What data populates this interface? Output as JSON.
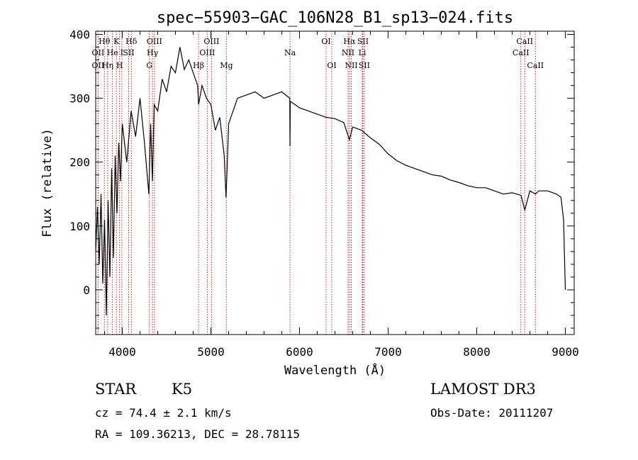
{
  "chart_data": {
    "type": "line",
    "title": "spec−55903−GAC_106N28_B1_sp13−024.fits",
    "xlabel": "Wavelength (Å)",
    "ylabel": "Flux (relative)",
    "xlim": [
      3700,
      9100
    ],
    "ylim": [
      -70,
      405
    ],
    "xticks": [
      4000,
      5000,
      6000,
      7000,
      8000,
      9000
    ],
    "yticks": [
      0,
      100,
      200,
      300,
      400
    ],
    "series": [
      {
        "name": "spectrum",
        "x": [
          3700,
          3720,
          3740,
          3760,
          3780,
          3800,
          3820,
          3840,
          3860,
          3880,
          3900,
          3920,
          3940,
          3960,
          3980,
          4000,
          4050,
          4100,
          4150,
          4200,
          4250,
          4300,
          4320,
          4340,
          4360,
          4400,
          4450,
          4500,
          4550,
          4600,
          4650,
          4700,
          4750,
          4800,
          4850,
          4861,
          4900,
          4950,
          5000,
          5050,
          5100,
          5150,
          5170,
          5183,
          5200,
          5250,
          5300,
          5400,
          5500,
          5600,
          5700,
          5800,
          5890,
          5893,
          5896,
          5950,
          6000,
          6100,
          6200,
          6300,
          6400,
          6500,
          6563,
          6600,
          6700,
          6800,
          6900,
          7000,
          7100,
          7200,
          7300,
          7400,
          7500,
          7600,
          7700,
          7800,
          7900,
          8000,
          8100,
          8200,
          8300,
          8400,
          8500,
          8542,
          8600,
          8662,
          8700,
          8800,
          8900,
          8950,
          8980,
          9000
        ],
        "y": [
          60,
          130,
          40,
          150,
          10,
          110,
          -40,
          140,
          20,
          190,
          50,
          210,
          120,
          230,
          170,
          260,
          200,
          280,
          240,
          300,
          230,
          150,
          260,
          170,
          290,
          280,
          330,
          310,
          350,
          340,
          380,
          345,
          360,
          340,
          320,
          290,
          320,
          300,
          290,
          250,
          270,
          210,
          145,
          190,
          260,
          280,
          300,
          305,
          310,
          300,
          305,
          310,
          300,
          225,
          295,
          290,
          285,
          280,
          275,
          270,
          268,
          262,
          235,
          255,
          250,
          238,
          228,
          213,
          202,
          195,
          190,
          185,
          180,
          178,
          172,
          168,
          163,
          160,
          160,
          155,
          150,
          152,
          148,
          125,
          155,
          150,
          155,
          155,
          150,
          145,
          110,
          0
        ]
      }
    ],
    "lines": [
      {
        "name": "Hθ",
        "x": 3798,
        "row": 1
      },
      {
        "name": "OII",
        "x": 3727,
        "row": 2
      },
      {
        "name": "OII",
        "x": 3727,
        "row": 3
      },
      {
        "name": "K",
        "x": 3934,
        "row": 1
      },
      {
        "name": "He",
        "x": 3889,
        "row": 2
      },
      {
        "name": "Hη",
        "x": 3835,
        "row": 3
      },
      {
        "name": "Hδ",
        "x": 4102,
        "row": 1
      },
      {
        "name": "SII",
        "x": 4072,
        "row": 2
      },
      {
        "name": "H",
        "x": 3969,
        "row": 3
      },
      {
        "name": "I",
        "x": 3995,
        "row": 2
      },
      {
        "name": "OIII",
        "x": 4363,
        "row": 1
      },
      {
        "name": "Hγ",
        "x": 4341,
        "row": 2
      },
      {
        "name": "G",
        "x": 4305,
        "row": 3
      },
      {
        "name": "OIII",
        "x": 5007,
        "row": 1
      },
      {
        "name": "OIII",
        "x": 4959,
        "row": 2
      },
      {
        "name": "Hβ",
        "x": 4861,
        "row": 3
      },
      {
        "name": "Mg",
        "x": 5175,
        "row": 3
      },
      {
        "name": "Na",
        "x": 5893,
        "row": 2
      },
      {
        "name": "OI",
        "x": 6300,
        "row": 1
      },
      {
        "name": "OI",
        "x": 6364,
        "row": 3
      },
      {
        "name": "Hα",
        "x": 6563,
        "row": 1
      },
      {
        "name": "SII",
        "x": 6716,
        "row": 1
      },
      {
        "name": "NII",
        "x": 6548,
        "row": 2
      },
      {
        "name": "Li",
        "x": 6708,
        "row": 2
      },
      {
        "name": "NII",
        "x": 6584,
        "row": 3
      },
      {
        "name": "SII",
        "x": 6731,
        "row": 3
      },
      {
        "name": "CaII",
        "x": 8542,
        "row": 1
      },
      {
        "name": "CaII",
        "x": 8498,
        "row": 2
      },
      {
        "name": "CaII",
        "x": 8662,
        "row": 3
      }
    ]
  },
  "info": {
    "object_class": "STAR",
    "subclass": "K5",
    "survey": "LAMOST DR3",
    "redshift": "cz = 74.4 ± 2.1 km/s",
    "obs_date": "Obs-Date: 20111207",
    "coords": "RA = 109.36213, DEC =  28.78115"
  }
}
